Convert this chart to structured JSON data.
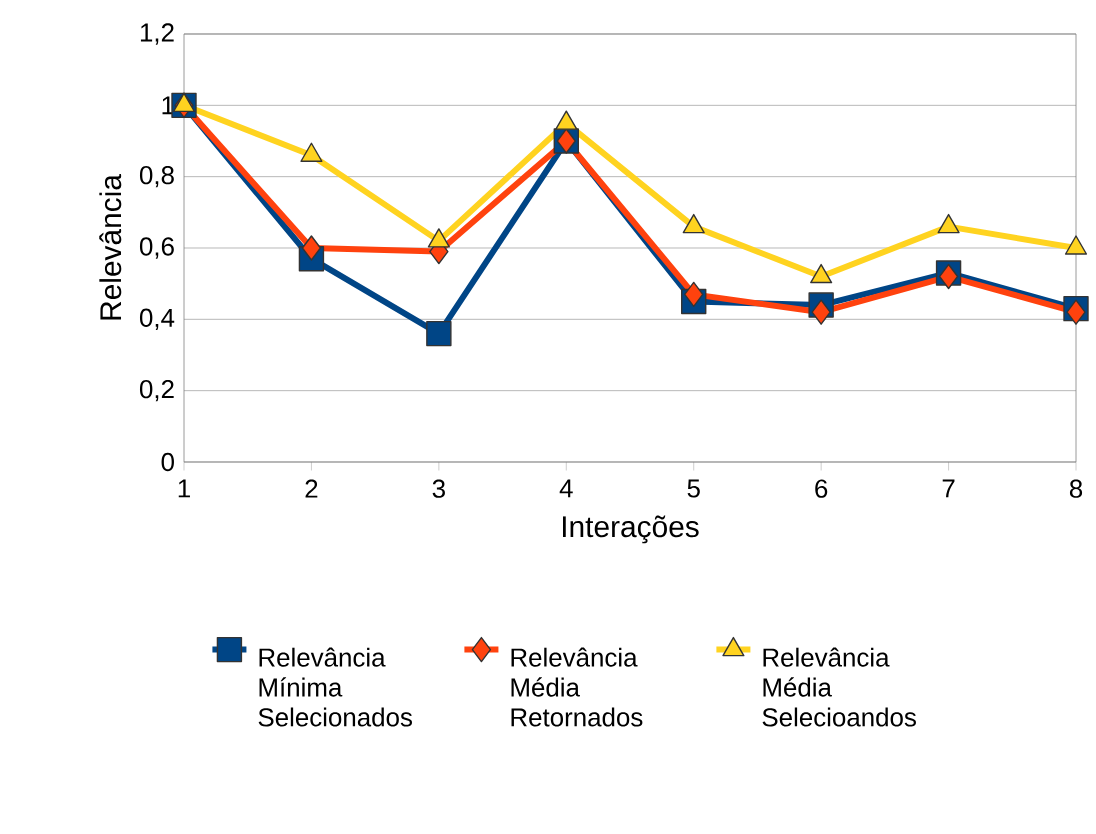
{
  "chart_data": {
    "type": "line",
    "xlabel": "Interações",
    "ylabel": "Relevância",
    "x": [
      1,
      2,
      3,
      4,
      5,
      6,
      7,
      8
    ],
    "xlim": [
      1,
      8
    ],
    "xticks": [
      1,
      2,
      3,
      4,
      5,
      6,
      7,
      8
    ],
    "ylim": [
      0,
      1.2
    ],
    "yticks": [
      0,
      {
        "value": 0.2,
        "label": "0,2"
      },
      {
        "value": 0.4,
        "label": "0,4"
      },
      {
        "value": 0.6,
        "label": "0,6"
      },
      {
        "value": 0.8,
        "label": "0,8"
      },
      1,
      {
        "value": 1.2,
        "label": "1,2"
      }
    ],
    "grid": "y",
    "legend": "bottom",
    "series": [
      {
        "name": "Relevância Mínima Selecionados",
        "color": "#004586",
        "marker": "square",
        "values": [
          1.0,
          0.57,
          0.36,
          0.9,
          0.45,
          0.44,
          0.53,
          0.43
        ]
      },
      {
        "name": "Relevância Média Retornados",
        "color": "#ff420e",
        "marker": "diamond",
        "values": [
          1.0,
          0.6,
          0.59,
          0.9,
          0.47,
          0.42,
          0.52,
          0.42
        ]
      },
      {
        "name": "Relevância Média Selecioandos",
        "color": "#ffd320",
        "marker": "triangle down",
        "values": [
          1.0,
          0.86,
          0.62,
          0.95,
          0.66,
          0.52,
          0.66,
          0.6
        ]
      }
    ]
  }
}
